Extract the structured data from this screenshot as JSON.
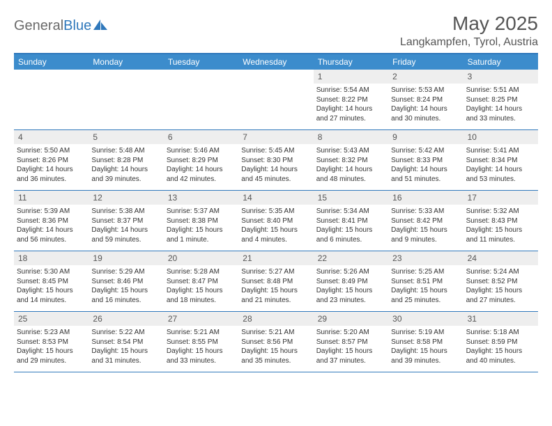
{
  "brand": {
    "part1": "General",
    "part2": "Blue"
  },
  "header": {
    "title": "May 2025",
    "location": "Langkampfen, Tyrol, Austria"
  },
  "colors": {
    "header_bar": "#3c8ccc",
    "accent_line": "#2f78bb",
    "daynum_bg": "#eeeeee",
    "text": "#333333",
    "white": "#ffffff"
  },
  "weekdays": [
    "Sunday",
    "Monday",
    "Tuesday",
    "Wednesday",
    "Thursday",
    "Friday",
    "Saturday"
  ],
  "weeks": [
    [
      null,
      null,
      null,
      null,
      {
        "n": "1",
        "sr": "5:54 AM",
        "ss": "8:22 PM",
        "dl": "14 hours and 27 minutes."
      },
      {
        "n": "2",
        "sr": "5:53 AM",
        "ss": "8:24 PM",
        "dl": "14 hours and 30 minutes."
      },
      {
        "n": "3",
        "sr": "5:51 AM",
        "ss": "8:25 PM",
        "dl": "14 hours and 33 minutes."
      }
    ],
    [
      {
        "n": "4",
        "sr": "5:50 AM",
        "ss": "8:26 PM",
        "dl": "14 hours and 36 minutes."
      },
      {
        "n": "5",
        "sr": "5:48 AM",
        "ss": "8:28 PM",
        "dl": "14 hours and 39 minutes."
      },
      {
        "n": "6",
        "sr": "5:46 AM",
        "ss": "8:29 PM",
        "dl": "14 hours and 42 minutes."
      },
      {
        "n": "7",
        "sr": "5:45 AM",
        "ss": "8:30 PM",
        "dl": "14 hours and 45 minutes."
      },
      {
        "n": "8",
        "sr": "5:43 AM",
        "ss": "8:32 PM",
        "dl": "14 hours and 48 minutes."
      },
      {
        "n": "9",
        "sr": "5:42 AM",
        "ss": "8:33 PM",
        "dl": "14 hours and 51 minutes."
      },
      {
        "n": "10",
        "sr": "5:41 AM",
        "ss": "8:34 PM",
        "dl": "14 hours and 53 minutes."
      }
    ],
    [
      {
        "n": "11",
        "sr": "5:39 AM",
        "ss": "8:36 PM",
        "dl": "14 hours and 56 minutes."
      },
      {
        "n": "12",
        "sr": "5:38 AM",
        "ss": "8:37 PM",
        "dl": "14 hours and 59 minutes."
      },
      {
        "n": "13",
        "sr": "5:37 AM",
        "ss": "8:38 PM",
        "dl": "15 hours and 1 minute."
      },
      {
        "n": "14",
        "sr": "5:35 AM",
        "ss": "8:40 PM",
        "dl": "15 hours and 4 minutes."
      },
      {
        "n": "15",
        "sr": "5:34 AM",
        "ss": "8:41 PM",
        "dl": "15 hours and 6 minutes."
      },
      {
        "n": "16",
        "sr": "5:33 AM",
        "ss": "8:42 PM",
        "dl": "15 hours and 9 minutes."
      },
      {
        "n": "17",
        "sr": "5:32 AM",
        "ss": "8:43 PM",
        "dl": "15 hours and 11 minutes."
      }
    ],
    [
      {
        "n": "18",
        "sr": "5:30 AM",
        "ss": "8:45 PM",
        "dl": "15 hours and 14 minutes."
      },
      {
        "n": "19",
        "sr": "5:29 AM",
        "ss": "8:46 PM",
        "dl": "15 hours and 16 minutes."
      },
      {
        "n": "20",
        "sr": "5:28 AM",
        "ss": "8:47 PM",
        "dl": "15 hours and 18 minutes."
      },
      {
        "n": "21",
        "sr": "5:27 AM",
        "ss": "8:48 PM",
        "dl": "15 hours and 21 minutes."
      },
      {
        "n": "22",
        "sr": "5:26 AM",
        "ss": "8:49 PM",
        "dl": "15 hours and 23 minutes."
      },
      {
        "n": "23",
        "sr": "5:25 AM",
        "ss": "8:51 PM",
        "dl": "15 hours and 25 minutes."
      },
      {
        "n": "24",
        "sr": "5:24 AM",
        "ss": "8:52 PM",
        "dl": "15 hours and 27 minutes."
      }
    ],
    [
      {
        "n": "25",
        "sr": "5:23 AM",
        "ss": "8:53 PM",
        "dl": "15 hours and 29 minutes."
      },
      {
        "n": "26",
        "sr": "5:22 AM",
        "ss": "8:54 PM",
        "dl": "15 hours and 31 minutes."
      },
      {
        "n": "27",
        "sr": "5:21 AM",
        "ss": "8:55 PM",
        "dl": "15 hours and 33 minutes."
      },
      {
        "n": "28",
        "sr": "5:21 AM",
        "ss": "8:56 PM",
        "dl": "15 hours and 35 minutes."
      },
      {
        "n": "29",
        "sr": "5:20 AM",
        "ss": "8:57 PM",
        "dl": "15 hours and 37 minutes."
      },
      {
        "n": "30",
        "sr": "5:19 AM",
        "ss": "8:58 PM",
        "dl": "15 hours and 39 minutes."
      },
      {
        "n": "31",
        "sr": "5:18 AM",
        "ss": "8:59 PM",
        "dl": "15 hours and 40 minutes."
      }
    ]
  ],
  "labels": {
    "sunrise": "Sunrise: ",
    "sunset": "Sunset: ",
    "daylight": "Daylight: "
  }
}
